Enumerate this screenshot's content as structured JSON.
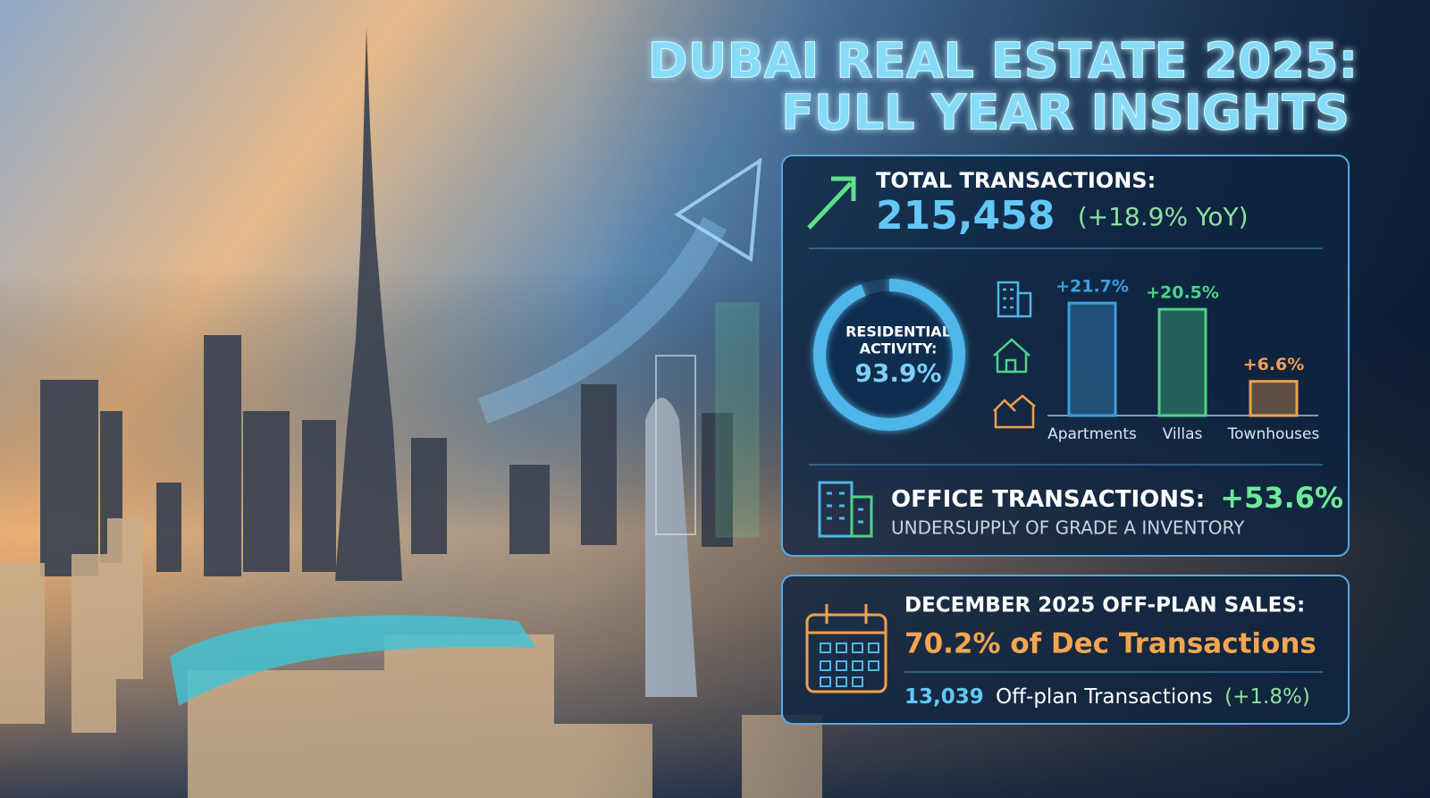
{
  "title": [
    "DUBAI REAL ESTATE 2025:",
    "FULL YEAR INSIGHTS"
  ],
  "total": {
    "label": "TOTAL TRANSACTIONS:",
    "value": "215,458",
    "change": "(+18.9% YoY)"
  },
  "chart_data": [
    {
      "type": "donut",
      "label": [
        "RESIDENTIAL",
        "ACTIVITY:"
      ],
      "value": 93.9,
      "value_label": "93.9%",
      "color": "#4fb6ea"
    },
    {
      "type": "bar",
      "categories": [
        "Apartments",
        "Villas",
        "Townhouses"
      ],
      "values": [
        21.7,
        20.5,
        6.6
      ],
      "value_labels": [
        "+21.7%",
        "+20.5%",
        "+6.6%"
      ],
      "colors": [
        "#3f9fe0",
        "#4fd28a",
        "#f0a050"
      ],
      "ylim": [
        0,
        25
      ]
    }
  ],
  "office": {
    "label": "OFFICE TRANSACTIONS:",
    "change": "+53.6%",
    "note": "UNDERSUPPLY OF GRADE A INVENTORY"
  },
  "december": {
    "label": "DECEMBER 2025 OFF-PLAN SALES:",
    "headline": "70.2% of Dec Transactions",
    "count": "13,039",
    "count_text": "Off-plan Transactions",
    "change": "(+1.8%)"
  }
}
